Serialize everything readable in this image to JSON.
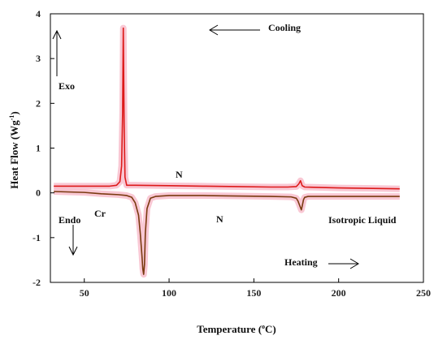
{
  "chart_data": {
    "type": "line",
    "xlabel": {
      "prefix": "Temperature (",
      "sup": "o",
      "suffix": "C)"
    },
    "ylabel": {
      "prefix": "Heat Flow (Wg",
      "sup": "-1",
      "suffix": ")"
    },
    "xlim": [
      30,
      250
    ],
    "ylim": [
      -2,
      4
    ],
    "xticks": [
      50,
      100,
      150,
      200,
      250
    ],
    "yticks": [
      -2,
      -1,
      0,
      1,
      2,
      3,
      4
    ],
    "grid": false,
    "colors": {
      "cooling": "#dd1a1a",
      "heating": "#7a3a10",
      "glow": "#f7b5c6",
      "axis": "#000000"
    },
    "series": [
      {
        "key": "cooling",
        "x": [
          32,
          55,
          65,
          69,
          71,
          72,
          72.6,
          73,
          73.5,
          74,
          75,
          80,
          100,
          120,
          140,
          160,
          170,
          175,
          176.5,
          177.5,
          178.5,
          180,
          190,
          200,
          220,
          236
        ],
        "y": [
          0.15,
          0.15,
          0.15,
          0.17,
          0.25,
          0.6,
          1.8,
          3.68,
          1.5,
          0.35,
          0.17,
          0.17,
          0.16,
          0.15,
          0.14,
          0.13,
          0.13,
          0.14,
          0.2,
          0.27,
          0.16,
          0.13,
          0.12,
          0.11,
          0.1,
          0.09
        ]
      },
      {
        "key": "heating",
        "x": [
          32,
          50,
          60,
          70,
          75,
          78,
          80,
          82,
          83,
          84,
          84.5,
          85,
          85.5,
          86,
          87,
          89,
          92,
          100,
          120,
          140,
          160,
          172,
          175,
          176,
          177,
          178,
          178.6,
          179.3,
          180,
          182,
          190,
          200,
          220,
          236
        ],
        "y": [
          0.03,
          0.01,
          -0.02,
          -0.04,
          -0.06,
          -0.1,
          -0.22,
          -0.5,
          -0.9,
          -1.4,
          -1.7,
          -1.82,
          -1.6,
          -0.9,
          -0.35,
          -0.12,
          -0.08,
          -0.06,
          -0.06,
          -0.07,
          -0.08,
          -0.09,
          -0.12,
          -0.18,
          -0.28,
          -0.38,
          -0.28,
          -0.15,
          -0.1,
          -0.08,
          -0.08,
          -0.08,
          -0.08,
          -0.08
        ]
      }
    ],
    "annotations": {
      "cooling": "Cooling",
      "heating": "Heating",
      "exo": "Exo",
      "endo": "Endo",
      "cr": "Cr",
      "n_upper": "N",
      "n_lower": "N",
      "isotropic": "Isotropic Liquid"
    }
  }
}
